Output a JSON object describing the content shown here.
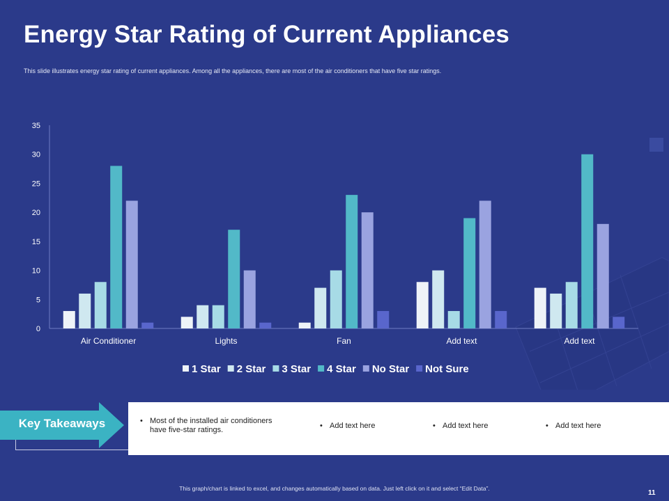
{
  "slide": {
    "title": "Energy Star Rating of Current Appliances",
    "subtitle": "This slide illustrates energy star rating of current appliances. Among all the appliances, there are most of the air conditioners that have five star ratings.",
    "page_number": "11",
    "footer_note": "This graph/chart is linked to excel, and changes automatically based on data. Just left click on it and select “Edit Data”."
  },
  "takeaways": {
    "label": "Key Takeaways",
    "items": [
      {
        "bullet": "•",
        "text_line1": "Most of the installed air conditioners",
        "text_line2": "have five-star ratings."
      },
      {
        "bullet": "•",
        "text_line1": "Add text here",
        "text_line2": ""
      },
      {
        "bullet": "•",
        "text_line1": "Add text here",
        "text_line2": ""
      },
      {
        "bullet": "•",
        "text_line1": "Add text here",
        "text_line2": ""
      }
    ]
  },
  "chart_data": {
    "type": "bar",
    "categories": [
      "Air Conditioner",
      "Lights",
      "Fan",
      "Add text",
      "Add text"
    ],
    "series": [
      {
        "name": "1 Star",
        "color": "#eef3f8",
        "values": [
          3,
          2,
          1,
          8,
          7
        ]
      },
      {
        "name": "2 Star",
        "color": "#cfe8f0",
        "values": [
          6,
          4,
          7,
          10,
          6
        ]
      },
      {
        "name": "3 Star",
        "color": "#a7dbe6",
        "values": [
          8,
          4,
          10,
          3,
          8
        ]
      },
      {
        "name": "4 Star",
        "color": "#52b9c8",
        "values": [
          28,
          17,
          23,
          19,
          30
        ]
      },
      {
        "name": "No Star",
        "color": "#9aa3e0",
        "values": [
          22,
          10,
          20,
          22,
          18
        ]
      },
      {
        "name": "Not Sure",
        "color": "#5966cc",
        "values": [
          1,
          1,
          3,
          3,
          2
        ]
      }
    ],
    "ylim": [
      0,
      35
    ],
    "yticks": [
      "0",
      "5",
      "10",
      "15",
      "20",
      "25",
      "30",
      "35"
    ],
    "legend_position": "bottom",
    "grid": false
  }
}
